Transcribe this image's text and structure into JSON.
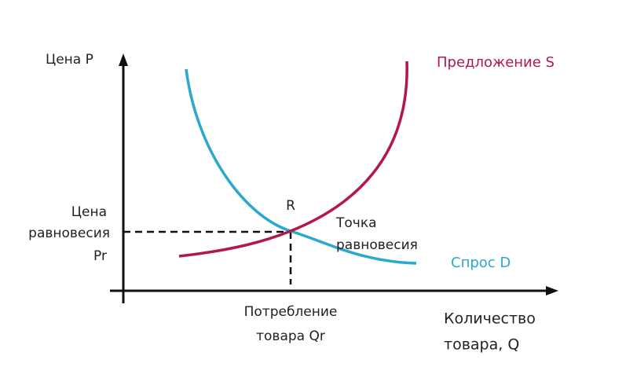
{
  "axes": {
    "y_label": "Цена P",
    "x_label_lines": [
      "Количество",
      "товара, Q"
    ]
  },
  "curves": {
    "supply": "Предложение S",
    "demand": "Спрос D"
  },
  "equilibrium": {
    "point": "R",
    "label_lines": [
      "Точка",
      "равновесия"
    ],
    "price_lines": [
      "Цена",
      "равновесия",
      "Pr"
    ],
    "quantity_lines": [
      "Потребление",
      "товара Qr"
    ]
  }
}
